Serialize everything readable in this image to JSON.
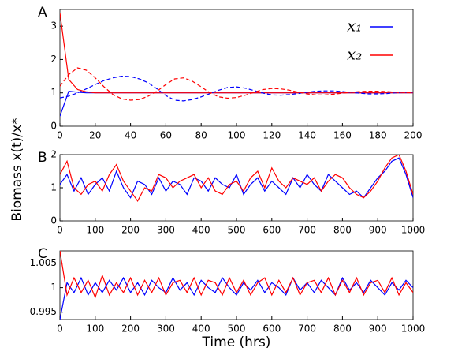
{
  "ylabel": "Biomass x(t)/x*",
  "xlabel": "Time (hrs)",
  "chart_data": [
    {
      "type": "line",
      "panel": "A",
      "legend": "upper right",
      "x": [
        0,
        5,
        10,
        15,
        20,
        25,
        30,
        35,
        40,
        45,
        50,
        55,
        60,
        65,
        70,
        75,
        80,
        85,
        90,
        95,
        100,
        105,
        110,
        115,
        120,
        125,
        130,
        135,
        140,
        145,
        150,
        155,
        160,
        165,
        170,
        175,
        180,
        185,
        190,
        195,
        200
      ],
      "xlim": [
        0,
        200
      ],
      "xticks": [
        0,
        20,
        40,
        60,
        80,
        100,
        120,
        140,
        160,
        180,
        200
      ],
      "ylim": [
        0,
        3.5
      ],
      "yticks": [
        0,
        1,
        2,
        3
      ],
      "series": [
        {
          "name": "x₁",
          "color": "#0000ff",
          "values": [
            0.3,
            1.05,
            1.02,
            1,
            1,
            1,
            1,
            1,
            1,
            1,
            1,
            1,
            1,
            1,
            1,
            1,
            1,
            1,
            1,
            1,
            1,
            1,
            1,
            1,
            1,
            1,
            1,
            1,
            1,
            1,
            1,
            1,
            1,
            1,
            1,
            1,
            1,
            1,
            1,
            1,
            1
          ]
        },
        {
          "name": "x₂",
          "color": "#ff0000",
          "values": [
            3.4,
            1.4,
            1.1,
            1.03,
            1,
            1,
            1,
            1,
            1,
            1,
            1,
            1,
            1,
            1,
            1,
            1,
            1,
            1,
            1,
            1,
            1,
            1,
            1,
            1,
            1,
            1,
            1,
            1,
            1,
            1,
            1,
            1,
            1,
            1,
            1,
            1,
            1,
            1,
            1,
            1,
            1
          ]
        },
        {
          "color": "#0000ff",
          "dash": true,
          "values": [
            0.85,
            0.9,
            1.0,
            1.12,
            1.25,
            1.37,
            1.45,
            1.5,
            1.49,
            1.42,
            1.3,
            1.12,
            0.92,
            0.78,
            0.76,
            0.8,
            0.88,
            0.98,
            1.08,
            1.16,
            1.18,
            1.14,
            1.07,
            0.99,
            0.94,
            0.93,
            0.95,
            0.98,
            1.02,
            1.05,
            1.06,
            1.06,
            1.04,
            1.01,
            0.99,
            0.97,
            0.97,
            0.98,
            1.0,
            1.01,
            1.02
          ]
        },
        {
          "color": "#ff0000",
          "dash": true,
          "values": [
            1.2,
            1.55,
            1.75,
            1.68,
            1.45,
            1.18,
            0.95,
            0.82,
            0.78,
            0.8,
            0.9,
            1.05,
            1.25,
            1.42,
            1.45,
            1.35,
            1.18,
            1.0,
            0.88,
            0.84,
            0.86,
            0.93,
            1.02,
            1.1,
            1.13,
            1.12,
            1.08,
            1.02,
            0.97,
            0.94,
            0.94,
            0.96,
            0.99,
            1.02,
            1.04,
            1.05,
            1.05,
            1.04,
            1.02,
            1.01,
            1.0
          ]
        }
      ]
    },
    {
      "type": "line",
      "panel": "B",
      "x": [
        0,
        20,
        40,
        60,
        80,
        100,
        120,
        140,
        160,
        180,
        200,
        220,
        240,
        260,
        280,
        300,
        320,
        340,
        360,
        380,
        400,
        420,
        440,
        460,
        480,
        500,
        520,
        540,
        560,
        580,
        600,
        620,
        640,
        660,
        680,
        700,
        720,
        740,
        760,
        780,
        800,
        820,
        840,
        860,
        880,
        900,
        920,
        940,
        960,
        980,
        1000
      ],
      "xlim": [
        0,
        1000
      ],
      "xticks": [
        0,
        100,
        200,
        300,
        400,
        500,
        600,
        700,
        800,
        900,
        1000
      ],
      "ylim": [
        0,
        2
      ],
      "yticks": [
        0,
        1,
        2
      ],
      "series": [
        {
          "color": "#0000ff",
          "values": [
            1.1,
            1.4,
            0.9,
            1.3,
            0.8,
            1.1,
            1.3,
            0.9,
            1.5,
            1.0,
            0.7,
            1.2,
            1.1,
            0.8,
            1.3,
            0.9,
            1.2,
            1.1,
            0.8,
            1.3,
            1.2,
            0.9,
            1.3,
            1.1,
            1.0,
            1.4,
            0.8,
            1.1,
            1.3,
            0.9,
            1.2,
            1.0,
            0.8,
            1.3,
            1.0,
            1.4,
            1.1,
            0.9,
            1.4,
            1.2,
            1.0,
            0.8,
            0.9,
            0.7,
            1.0,
            1.3,
            1.5,
            1.8,
            1.9,
            1.4,
            0.7
          ]
        },
        {
          "color": "#ff0000",
          "values": [
            1.4,
            1.8,
            1.0,
            0.8,
            1.1,
            1.2,
            0.9,
            1.4,
            1.7,
            1.2,
            0.9,
            0.6,
            1.0,
            0.9,
            1.4,
            1.3,
            1.0,
            1.2,
            1.3,
            1.4,
            1.0,
            1.3,
            0.9,
            0.8,
            1.1,
            1.2,
            0.9,
            1.3,
            1.5,
            1.0,
            1.6,
            1.2,
            1.0,
            1.3,
            1.2,
            1.1,
            1.3,
            0.9,
            1.2,
            1.4,
            1.3,
            1.0,
            0.8,
            0.7,
            0.9,
            1.2,
            1.6,
            1.9,
            2.0,
            1.5,
            0.8
          ]
        }
      ]
    },
    {
      "type": "line",
      "panel": "C",
      "x": [
        0,
        20,
        40,
        60,
        80,
        100,
        120,
        140,
        160,
        180,
        200,
        220,
        240,
        260,
        280,
        300,
        320,
        340,
        360,
        380,
        400,
        420,
        440,
        460,
        480,
        500,
        520,
        540,
        560,
        580,
        600,
        620,
        640,
        660,
        680,
        700,
        720,
        740,
        760,
        780,
        800,
        820,
        840,
        860,
        880,
        900,
        920,
        940,
        960,
        980,
        1000
      ],
      "xlim": [
        0,
        1000
      ],
      "xticks": [
        0,
        100,
        200,
        300,
        400,
        500,
        600,
        700,
        800,
        900,
        1000
      ],
      "ylim": [
        0.9935,
        1.0075
      ],
      "yticks": [
        0.995,
        1,
        1.005
      ],
      "series": [
        {
          "color": "#0000ff",
          "values": [
            0.9935,
            1.001,
            0.999,
            1.002,
            0.9985,
            1.001,
            0.999,
            1.0015,
            0.9995,
            1.002,
            0.999,
            1.001,
            0.9985,
            1.0015,
            1.0,
            0.999,
            1.002,
            0.9995,
            1.001,
            0.9985,
            1.0015,
            1.0,
            0.999,
            1.002,
            1.0,
            0.9985,
            1.001,
            0.9995,
            1.0015,
            0.999,
            1.001,
            1.0,
            0.9985,
            1.002,
            0.9995,
            1.001,
            0.999,
            1.0015,
            1.0,
            0.9985,
            1.002,
            0.9995,
            1.001,
            0.999,
            1.0015,
            1.0,
            0.9985,
            1.001,
            0.9995,
            1.0015,
            1.0
          ]
        },
        {
          "color": "#ff0000",
          "values": [
            1.0075,
            0.9985,
            1.002,
            0.999,
            1.0015,
            0.998,
            1.0025,
            0.9985,
            1.001,
            0.999,
            1.002,
            0.9985,
            1.0015,
            0.999,
            1.002,
            0.9985,
            1.001,
            1.0015,
            0.999,
            1.002,
            0.9985,
            1.0015,
            1.001,
            0.9985,
            1.002,
            0.999,
            1.0015,
            0.9985,
            1.001,
            1.002,
            0.9985,
            1.0015,
            0.999,
            1.002,
            0.9985,
            1.001,
            1.0015,
            0.999,
            1.002,
            0.9985,
            1.0015,
            0.999,
            1.002,
            0.9985,
            1.001,
            1.0015,
            0.999,
            1.002,
            0.9985,
            1.001,
            0.999
          ]
        }
      ]
    }
  ]
}
